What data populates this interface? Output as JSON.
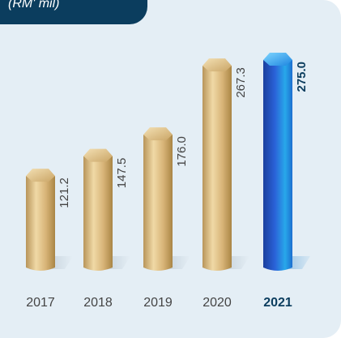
{
  "unit_label": "(RM' mil)",
  "colors": {
    "panel_background": "#e4eef5",
    "header_tab": "#0b3d5e",
    "gold_bar": "#d8b579",
    "highlight_bar": "#1f6fd6",
    "highlight_text": "#0b3d5e",
    "normal_text": "#444444"
  },
  "chart_data": {
    "type": "bar",
    "title": "",
    "xlabel": "",
    "ylabel": "",
    "categories": [
      "2017",
      "2018",
      "2019",
      "2020",
      "2021"
    ],
    "values": [
      121.2,
      147.5,
      176.0,
      267.3,
      275.0
    ],
    "value_labels": [
      "121.2",
      "147.5",
      "176.0",
      "267.3",
      "275.0"
    ],
    "highlight_index": 4,
    "ylim": [
      0,
      290
    ],
    "grid": false,
    "legend": "none"
  }
}
